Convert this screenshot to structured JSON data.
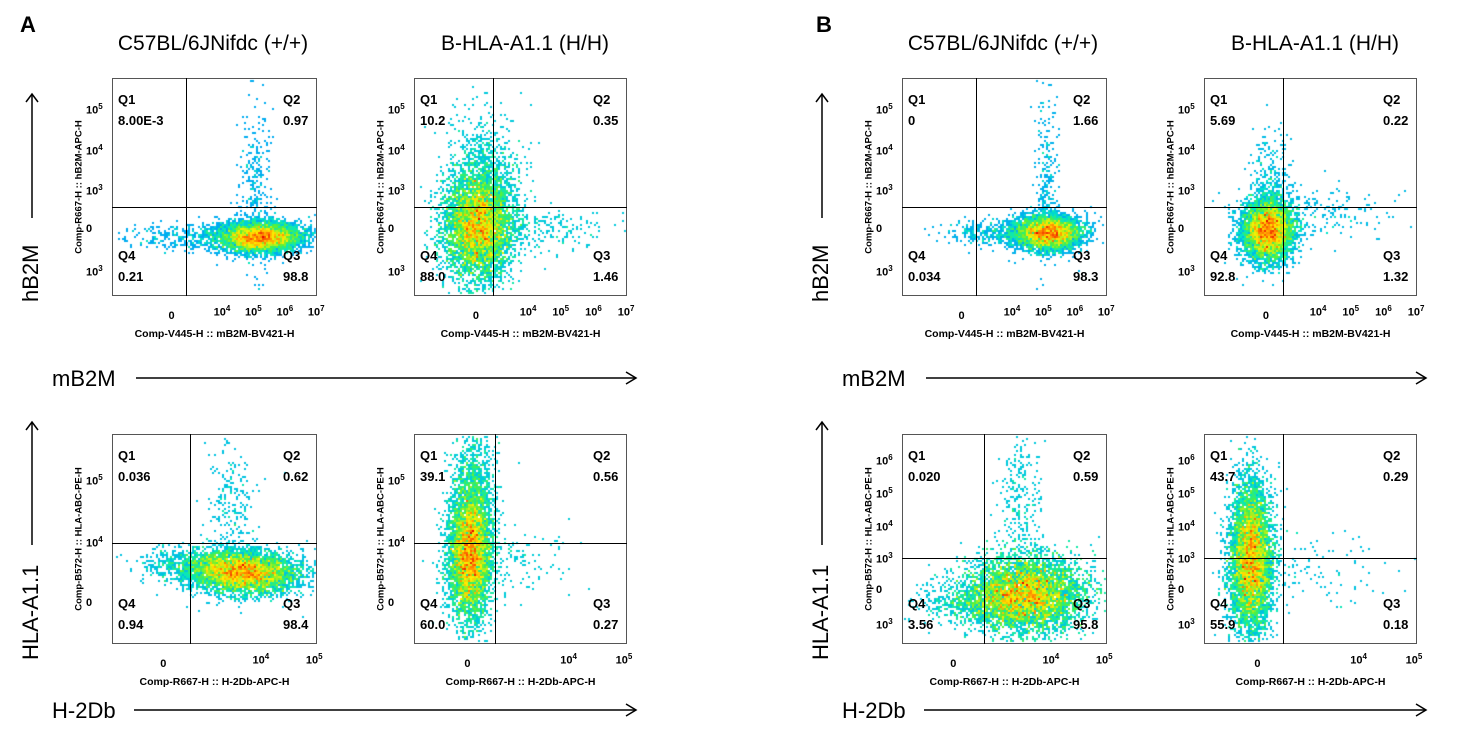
{
  "panels": [
    {
      "letter": "A",
      "columns": [
        "C57BL/6JNifdc (+/+)",
        "B-HLA-A1.1 (H/H)"
      ]
    },
    {
      "letter": "B",
      "columns": [
        "C57BL/6JNifdc (+/+)",
        "B-HLA-A1.1 (H/H)"
      ]
    }
  ],
  "row_labels": [
    {
      "y_arrow": "hB2M",
      "x_arrow": "mB2M"
    },
    {
      "y_arrow": "HLA-A1.1",
      "x_arrow": "H-2Db"
    }
  ],
  "chart_data": [
    {
      "type": "scatter",
      "panel": "A",
      "row": 1,
      "column": "C57BL/6JNifdc (+/+)",
      "xlabel": "Comp-V445-H :: mB2M-BV421-H",
      "ylabel": "Comp-R667-H :: hB2M-APC-H",
      "x_ticks": [
        "0",
        "10^4",
        "10^5",
        "10^6",
        "10^7"
      ],
      "y_ticks": [
        "10^3",
        "0",
        "10^3",
        "10^4",
        "10^5"
      ],
      "quadrants": {
        "Q1": "8.00E-3",
        "Q2": "0.97",
        "Q3": "98.8",
        "Q4": "0.21"
      }
    },
    {
      "type": "scatter",
      "panel": "A",
      "row": 1,
      "column": "B-HLA-A1.1 (H/H)",
      "xlabel": "Comp-V445-H :: mB2M-BV421-H",
      "ylabel": "Comp-R667-H :: hB2M-APC-H",
      "x_ticks": [
        "0",
        "10^4",
        "10^5",
        "10^6",
        "10^7"
      ],
      "y_ticks": [
        "10^3",
        "0",
        "10^3",
        "10^4",
        "10^5"
      ],
      "quadrants": {
        "Q1": "10.2",
        "Q2": "0.35",
        "Q3": "1.46",
        "Q4": "88.0"
      }
    },
    {
      "type": "scatter",
      "panel": "A",
      "row": 2,
      "column": "C57BL/6JNifdc (+/+)",
      "xlabel": "Comp-R667-H :: H-2Db-APC-H",
      "ylabel": "Comp-B572-H :: HLA-ABC-PE-H",
      "x_ticks": [
        "0",
        "10^4",
        "10^5"
      ],
      "y_ticks": [
        "0",
        "10^4",
        "10^5"
      ],
      "quadrants": {
        "Q1": "0.036",
        "Q2": "0.62",
        "Q3": "98.4",
        "Q4": "0.94"
      }
    },
    {
      "type": "scatter",
      "panel": "A",
      "row": 2,
      "column": "B-HLA-A1.1 (H/H)",
      "xlabel": "Comp-R667-H :: H-2Db-APC-H",
      "ylabel": "Comp-B572-H :: HLA-ABC-PE-H",
      "x_ticks": [
        "0",
        "10^4",
        "10^5"
      ],
      "y_ticks": [
        "0",
        "10^4",
        "10^5"
      ],
      "quadrants": {
        "Q1": "39.1",
        "Q2": "0.56",
        "Q3": "0.27",
        "Q4": "60.0"
      }
    },
    {
      "type": "scatter",
      "panel": "B",
      "row": 1,
      "column": "C57BL/6JNifdc (+/+)",
      "xlabel": "Comp-V445-H :: mB2M-BV421-H",
      "ylabel": "Comp-R667-H :: hB2M-APC-H",
      "x_ticks": [
        "0",
        "10^4",
        "10^5",
        "10^6",
        "10^7"
      ],
      "y_ticks": [
        "10^3",
        "0",
        "10^3",
        "10^4",
        "10^5"
      ],
      "quadrants": {
        "Q1": "0",
        "Q2": "1.66",
        "Q3": "98.3",
        "Q4": "0.034"
      }
    },
    {
      "type": "scatter",
      "panel": "B",
      "row": 1,
      "column": "B-HLA-A1.1 (H/H)",
      "xlabel": "Comp-V445-H :: mB2M-BV421-H",
      "ylabel": "Comp-R667-H :: hB2M-APC-H",
      "x_ticks": [
        "0",
        "10^4",
        "10^5",
        "10^6",
        "10^7"
      ],
      "y_ticks": [
        "10^3",
        "0",
        "10^3",
        "10^4",
        "10^5"
      ],
      "quadrants": {
        "Q1": "5.69",
        "Q2": "0.22",
        "Q3": "1.32",
        "Q4": "92.8"
      }
    },
    {
      "type": "scatter",
      "panel": "B",
      "row": 2,
      "column": "C57BL/6JNifdc (+/+)",
      "xlabel": "Comp-R667-H :: H-2Db-APC-H",
      "ylabel": "Comp-B572-H :: HLA-ABC-PE-H",
      "x_ticks": [
        "0",
        "10^4",
        "10^5"
      ],
      "y_ticks": [
        "10^3",
        "0",
        "10^3",
        "10^4",
        "10^5",
        "10^6"
      ],
      "quadrants": {
        "Q1": "0.020",
        "Q2": "0.59",
        "Q3": "95.8",
        "Q4": "3.56"
      }
    },
    {
      "type": "scatter",
      "panel": "B",
      "row": 2,
      "column": "B-HLA-A1.1 (H/H)",
      "xlabel": "Comp-R667-H :: H-2Db-APC-H",
      "ylabel": "Comp-B572-H :: HLA-ABC-PE-H",
      "x_ticks": [
        "0",
        "10^4",
        "10^5"
      ],
      "y_ticks": [
        "10^3",
        "0",
        "10^3",
        "10^4",
        "10^5",
        "10^6"
      ],
      "quadrants": {
        "Q1": "43.7",
        "Q2": "0.29",
        "Q3": "0.18",
        "Q4": "55.9"
      }
    }
  ]
}
